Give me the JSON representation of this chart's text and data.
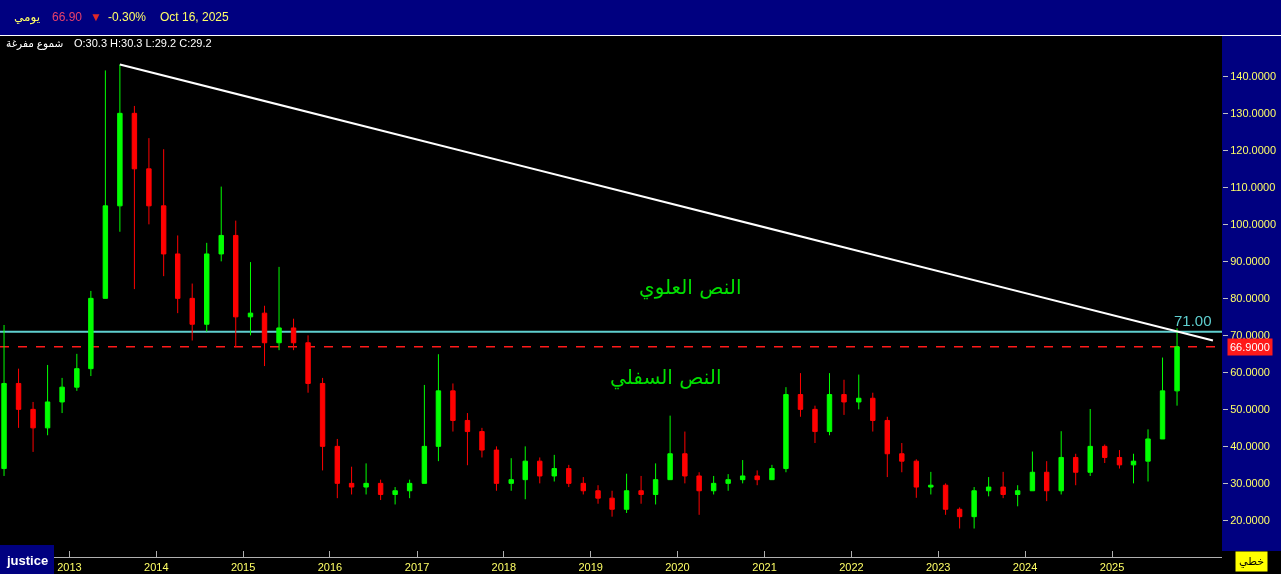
{
  "chart_data": {
    "type": "candlestick",
    "x": [
      "2012-04",
      "2012-06",
      "2012-08",
      "2012-10",
      "2012-12",
      "2013-02",
      "2013-04",
      "2013-06",
      "2013-08",
      "2013-10",
      "2013-12",
      "2014-02",
      "2014-04",
      "2014-06",
      "2014-08",
      "2014-10",
      "2014-12",
      "2015-02",
      "2015-04",
      "2015-06",
      "2015-08",
      "2015-10",
      "2015-12",
      "2016-02",
      "2016-04",
      "2016-06",
      "2016-08",
      "2016-10",
      "2016-12",
      "2017-02",
      "2017-04",
      "2017-06",
      "2017-08",
      "2017-10",
      "2017-12",
      "2018-02",
      "2018-04",
      "2018-06",
      "2018-08",
      "2018-10",
      "2018-12",
      "2019-02",
      "2019-04",
      "2019-06",
      "2019-08",
      "2019-10",
      "2019-12",
      "2020-02",
      "2020-04",
      "2020-06",
      "2020-08",
      "2020-10",
      "2020-12",
      "2021-02",
      "2021-04",
      "2021-06",
      "2021-08",
      "2021-10",
      "2021-12",
      "2022-02",
      "2022-04",
      "2022-06",
      "2022-08",
      "2022-10",
      "2022-12",
      "2023-02",
      "2023-04",
      "2023-06",
      "2023-08",
      "2023-10",
      "2023-12",
      "2024-02",
      "2024-04",
      "2024-06",
      "2024-08",
      "2024-10",
      "2024-12",
      "2025-02",
      "2025-04",
      "2025-06",
      "2025-08",
      "2025-10"
    ],
    "ohlc": [
      [
        34,
        72.8,
        32,
        57
      ],
      [
        57,
        61,
        45,
        50
      ],
      [
        50,
        52,
        38.5,
        45
      ],
      [
        45,
        62,
        43,
        52
      ],
      [
        52,
        58.5,
        49,
        56
      ],
      [
        56,
        65,
        55,
        61
      ],
      [
        61,
        82,
        59,
        80
      ],
      [
        80,
        141.6,
        80,
        105
      ],
      [
        105,
        143.2,
        98,
        130
      ],
      [
        130,
        132,
        82.5,
        115
      ],
      [
        115,
        123.3,
        100,
        105
      ],
      [
        105,
        120.3,
        86,
        92
      ],
      [
        92,
        97,
        76,
        80
      ],
      [
        80,
        84,
        68.6,
        73
      ],
      [
        73,
        95,
        71,
        92
      ],
      [
        92,
        110.2,
        90,
        97
      ],
      [
        97,
        101,
        66.8,
        75
      ],
      [
        75,
        89.8,
        70,
        76
      ],
      [
        76,
        78,
        61.7,
        68
      ],
      [
        68,
        88.5,
        66,
        72
      ],
      [
        72,
        74.5,
        66,
        68
      ],
      [
        68,
        70,
        54.5,
        57
      ],
      [
        57,
        58.5,
        33.5,
        40
      ],
      [
        40,
        42,
        26,
        30
      ],
      [
        30,
        34.5,
        27,
        29
      ],
      [
        29,
        35.4,
        27,
        30
      ],
      [
        30,
        31,
        25.5,
        27
      ],
      [
        27,
        29,
        24.3,
        28
      ],
      [
        28,
        31,
        26,
        30
      ],
      [
        30,
        56.6,
        30,
        40
      ],
      [
        40,
        64.9,
        36,
        55
      ],
      [
        55,
        57,
        44,
        47
      ],
      [
        47,
        49,
        34.9,
        44
      ],
      [
        44,
        45,
        37,
        39
      ],
      [
        39,
        40,
        28,
        30
      ],
      [
        30,
        36.8,
        28,
        31
      ],
      [
        31,
        40,
        25.7,
        36
      ],
      [
        36,
        37,
        30,
        32
      ],
      [
        32,
        37.7,
        30.5,
        34
      ],
      [
        34,
        35,
        29,
        30
      ],
      [
        30,
        31.7,
        27,
        28
      ],
      [
        28,
        29.5,
        24.5,
        26
      ],
      [
        26,
        28,
        21,
        23
      ],
      [
        23,
        32.6,
        22,
        28
      ],
      [
        28,
        32,
        24.5,
        27
      ],
      [
        27,
        35.4,
        24.3,
        31
      ],
      [
        31,
        48.3,
        31,
        38
      ],
      [
        38,
        44,
        30,
        32
      ],
      [
        32,
        33,
        21.5,
        28
      ],
      [
        28,
        32,
        27,
        30
      ],
      [
        30,
        32.5,
        28,
        31
      ],
      [
        31,
        36.3,
        30,
        32
      ],
      [
        32,
        33.5,
        29.5,
        31
      ],
      [
        31,
        35,
        31,
        34
      ],
      [
        34,
        56,
        33,
        54
      ],
      [
        54,
        59.8,
        48,
        50
      ],
      [
        50,
        51,
        40.9,
        44
      ],
      [
        44,
        59.8,
        43,
        54
      ],
      [
        54,
        58,
        48.5,
        52
      ],
      [
        52,
        59.4,
        50,
        53
      ],
      [
        53,
        54.5,
        44,
        47
      ],
      [
        47,
        48,
        31.7,
        38
      ],
      [
        38,
        40.9,
        33,
        36
      ],
      [
        36,
        36.5,
        26.1,
        29
      ],
      [
        29,
        33.1,
        27,
        29.5
      ],
      [
        29.5,
        30,
        21.5,
        23
      ],
      [
        23,
        23.5,
        17.8,
        21
      ],
      [
        21,
        29,
        17.8,
        28
      ],
      [
        28,
        31.7,
        26.5,
        29
      ],
      [
        29,
        33.1,
        26,
        27
      ],
      [
        27,
        29.5,
        23.8,
        28
      ],
      [
        28,
        38.6,
        28,
        33
      ],
      [
        33,
        36,
        25.2,
        28
      ],
      [
        28,
        44.1,
        27,
        37
      ],
      [
        37,
        38,
        29.5,
        33
      ],
      [
        33,
        50.1,
        32,
        40
      ],
      [
        40,
        40.5,
        35.5,
        37
      ],
      [
        37,
        39,
        34,
        35
      ],
      [
        35,
        38,
        30,
        36
      ],
      [
        36,
        44.6,
        30.5,
        42
      ],
      [
        42,
        64,
        42,
        55
      ],
      [
        55,
        71.9,
        51,
        66.9
      ]
    ],
    "colors": [
      "#00ff00",
      "#ff0000",
      "#ff0000",
      "#00ff00",
      "#00ff00",
      "#00ff00",
      "#00ff00",
      "#00ff00",
      "#00ff00",
      "#ff0000",
      "#ff0000",
      "#ff0000",
      "#ff0000",
      "#ff0000",
      "#00ff00",
      "#00ff00",
      "#ff0000",
      "#00ff00",
      "#ff0000",
      "#00ff00",
      "#ff0000",
      "#ff0000",
      "#ff0000",
      "#ff0000",
      "#ff0000",
      "#00ff00",
      "#ff0000",
      "#00ff00",
      "#00ff00",
      "#00ff00",
      "#00ff00",
      "#ff0000",
      "#ff0000",
      "#ff0000",
      "#ff0000",
      "#00ff00",
      "#00ff00",
      "#ff0000",
      "#00ff00",
      "#ff0000",
      "#ff0000",
      "#ff0000",
      "#ff0000",
      "#00ff00",
      "#ff0000",
      "#00ff00",
      "#00ff00",
      "#ff0000",
      "#ff0000",
      "#00ff00",
      "#00ff00",
      "#00ff00",
      "#ff0000",
      "#00ff00",
      "#00ff00",
      "#ff0000",
      "#ff0000",
      "#00ff00",
      "#ff0000",
      "#00ff00",
      "#ff0000",
      "#ff0000",
      "#ff0000",
      "#ff0000",
      "#00ff00",
      "#ff0000",
      "#ff0000",
      "#00ff00",
      "#00ff00",
      "#ff0000",
      "#00ff00",
      "#00ff00",
      "#ff0000",
      "#00ff00",
      "#ff0000",
      "#00ff00",
      "#ff0000",
      "#ff0000",
      "#00ff00",
      "#00ff00",
      "#00ff00",
      "#00ff00"
    ],
    "series": [
      {
        "type": "line",
        "x": [
          "2013-08-01",
          "2026-03-01"
        ],
        "values": [
          143.2,
          68.6
        ],
        "color": "#ffffff"
      }
    ],
    "xlim": [
      "2012-03-15",
      "2026-04-08"
    ],
    "xticks": [
      {
        "value": "2013-01-01",
        "label": "2013"
      },
      {
        "value": "2014-01-01",
        "label": "2014"
      },
      {
        "value": "2015-01-01",
        "label": "2015"
      },
      {
        "value": "2016-01-01",
        "label": "2016"
      },
      {
        "value": "2017-01-01",
        "label": "2017"
      },
      {
        "value": "2018-01-01",
        "label": "2018"
      },
      {
        "value": "2019-01-01",
        "label": "2019"
      },
      {
        "value": "2020-01-01",
        "label": "2020"
      },
      {
        "value": "2021-01-01",
        "label": "2021"
      },
      {
        "value": "2022-01-01",
        "label": "2022"
      },
      {
        "value": "2023-01-01",
        "label": "2023"
      },
      {
        "value": "2024-01-01",
        "label": "2024"
      },
      {
        "value": "2025-01-01",
        "label": "2025"
      }
    ],
    "ylim": [
      10.1,
      150.9
    ],
    "yticks": [
      {
        "value": 20,
        "label": "20.0000"
      },
      {
        "value": 30,
        "label": "30.0000"
      },
      {
        "value": 40,
        "label": "40.0000"
      },
      {
        "value": 50,
        "label": "50.0000"
      },
      {
        "value": 60,
        "label": "60.0000"
      },
      {
        "value": 70,
        "label": "70.0000"
      },
      {
        "value": 80,
        "label": "80.0000"
      },
      {
        "value": 90,
        "label": "90.0000"
      },
      {
        "value": 100,
        "label": "100.0000"
      },
      {
        "value": 110,
        "label": "110.0000"
      },
      {
        "value": 120,
        "label": "120.0000"
      },
      {
        "value": 130,
        "label": "130.0000"
      },
      {
        "value": 140,
        "label": "140.0000"
      }
    ],
    "ref_lines": [
      {
        "axis": "y",
        "value": 71,
        "label": "71.00",
        "color": "#5fcfcf"
      },
      {
        "axis": "y",
        "value": 66.9,
        "label": "66.9000",
        "color": "#ff1a1a",
        "line_style": "dashed"
      }
    ],
    "annotations": [
      "يومي",
      "66.90",
      "▼",
      "-0.30%",
      "Oct 16, 2025",
      "شموع مفرغة",
      "O:30.3 H:30.3 L:29.2 C:29.2",
      "justice",
      "خطي",
      "النص العلوي",
      "النص السفلي"
    ]
  }
}
